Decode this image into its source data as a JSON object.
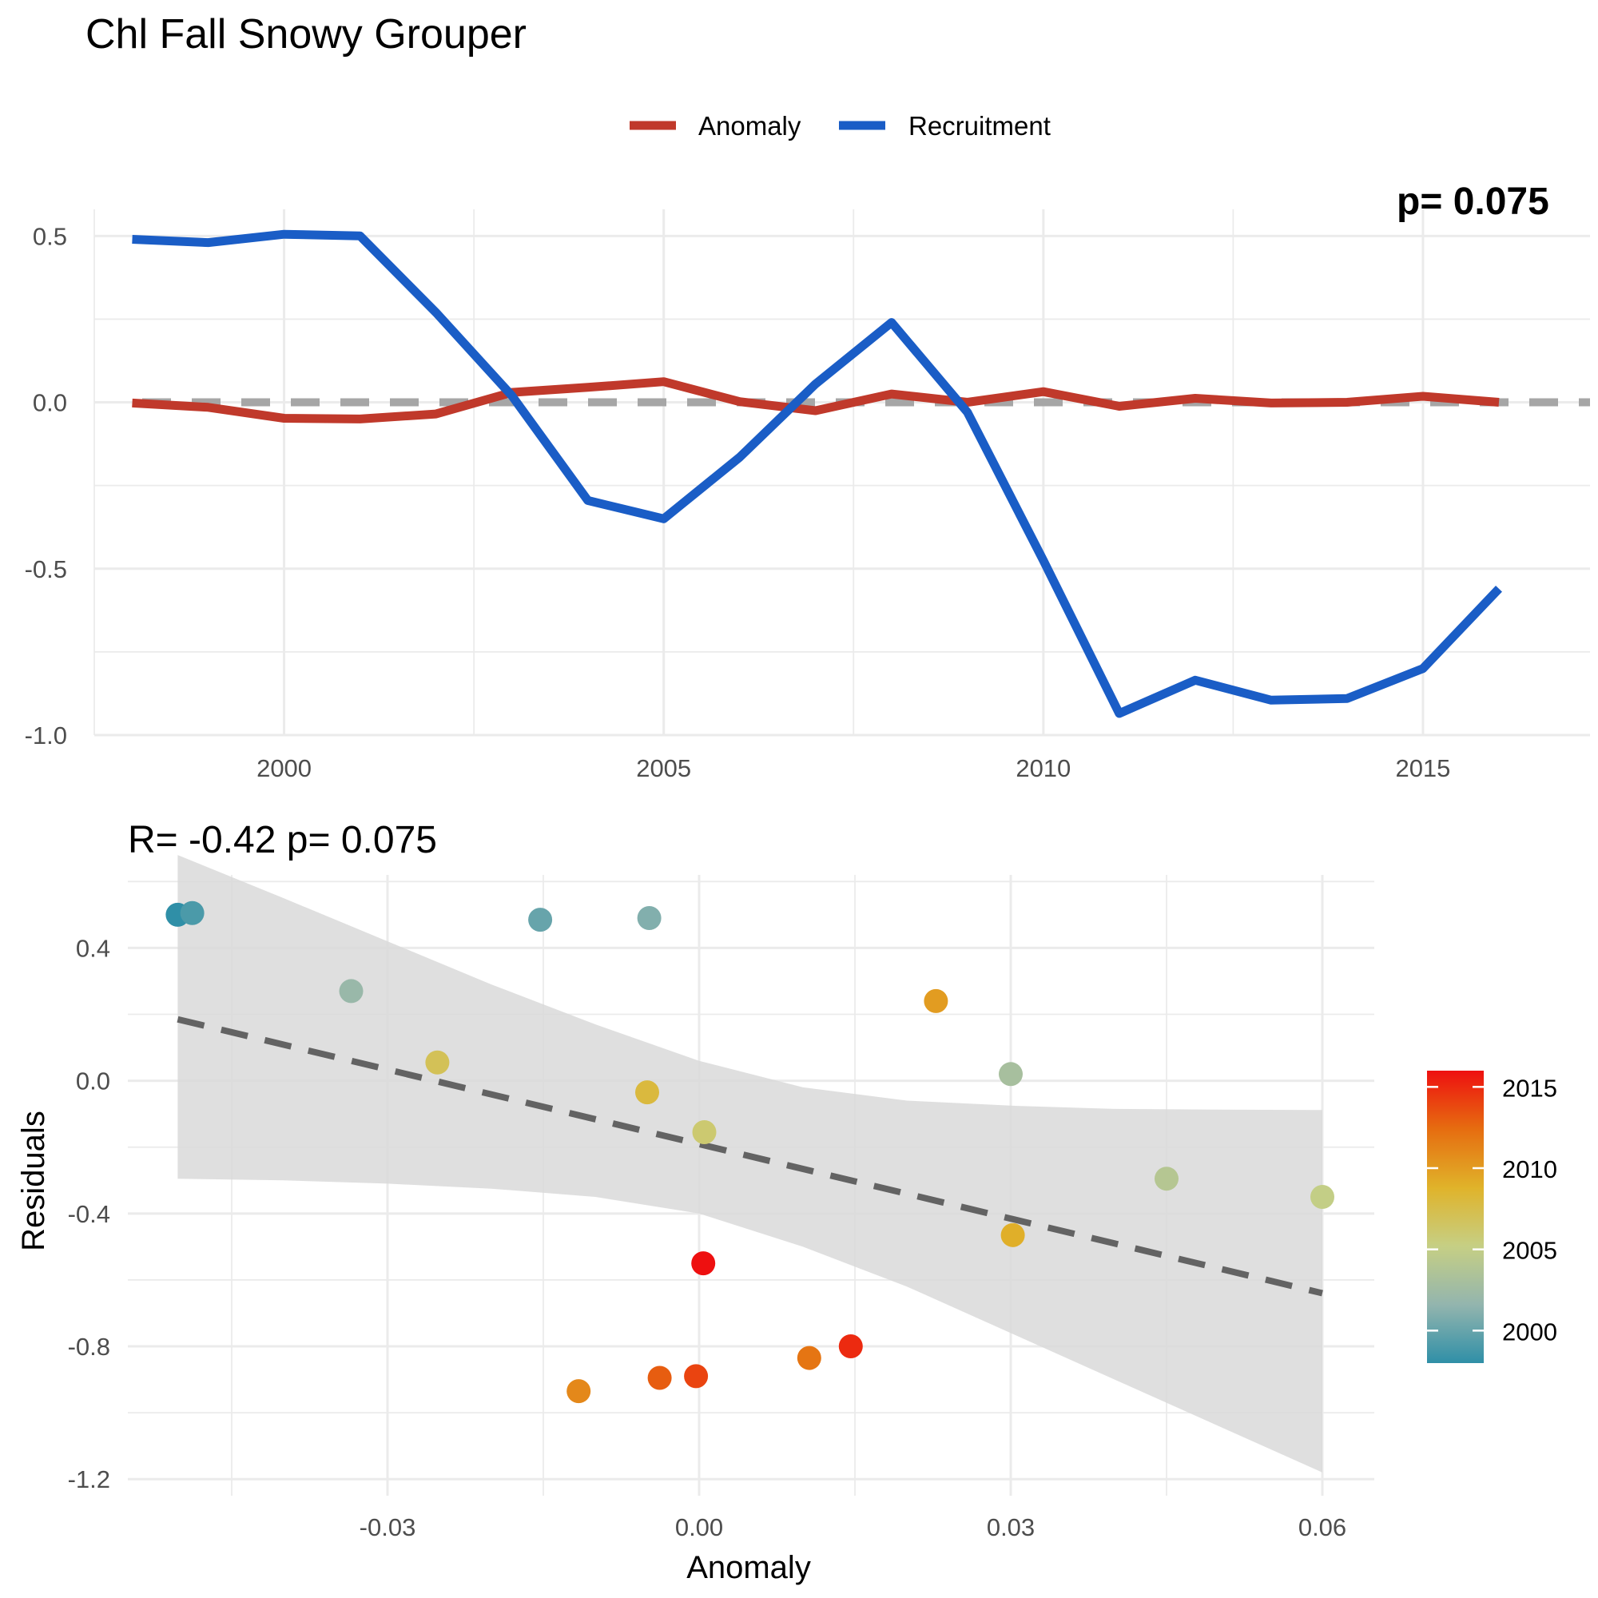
{
  "chart_data": [
    {
      "type": "line",
      "title": "Chl Fall Snowy Grouper",
      "corner_text": "p= 0.075",
      "legend": [
        "Anomaly",
        "Recruitment"
      ],
      "legend_position": "top",
      "x_ticks": [
        "2000",
        "2005",
        "2010",
        "2015"
      ],
      "y_ticks": [
        "0.5",
        "0.0",
        "-0.5",
        "-1.0"
      ],
      "xlim": [
        1997.5,
        2017.2
      ],
      "ylim": [
        -1.0,
        0.58
      ],
      "reference_line": 0,
      "x": [
        1998,
        1999,
        2000,
        2001,
        2002,
        2003,
        2004,
        2005,
        2006,
        2007,
        2008,
        2009,
        2010,
        2011,
        2012,
        2013,
        2014,
        2015,
        2016
      ],
      "series": [
        {
          "name": "Anomaly",
          "color": "#c0392b",
          "values": [
            -0.002,
            -0.015,
            -0.048,
            -0.05,
            -0.035,
            0.03,
            0.045,
            0.062,
            0.002,
            -0.025,
            0.025,
            0.0,
            0.032,
            -0.012,
            0.012,
            -0.002,
            0.0,
            0.018,
            0.0
          ]
        },
        {
          "name": "Recruitment",
          "color": "#1a5dc6",
          "values": [
            0.49,
            0.48,
            0.505,
            0.5,
            0.27,
            0.02,
            -0.295,
            -0.35,
            -0.165,
            0.055,
            0.24,
            -0.03,
            -0.475,
            -0.935,
            -0.835,
            -0.895,
            -0.89,
            -0.8,
            -0.56
          ]
        }
      ]
    },
    {
      "type": "scatter",
      "title": "R= -0.42  p= 0.075",
      "xlabel": "Anomaly",
      "ylabel": "Residuals",
      "x_ticks": [
        "-0.03",
        "0.00",
        "0.03",
        "0.06"
      ],
      "y_ticks": [
        "0.4",
        "0.0",
        "-0.4",
        "-0.8",
        "-1.2"
      ],
      "xlim": [
        -0.055,
        0.065
      ],
      "ylim": [
        -1.25,
        0.62
      ],
      "color_scale": {
        "label_ticks": [
          "2015",
          "2010",
          "2005",
          "2000"
        ],
        "range": [
          1998,
          2016
        ],
        "stops": [
          "#2f8fa7",
          "#93b5ae",
          "#c6cf84",
          "#e0b32a",
          "#e66d10",
          "#ee1010"
        ]
      },
      "points": [
        {
          "year": 1998,
          "x": -0.0502,
          "y": 0.5
        },
        {
          "year": 1999,
          "x": -0.0488,
          "y": 0.505
        },
        {
          "year": 2000,
          "x": -0.0153,
          "y": 0.485
        },
        {
          "year": 2001,
          "x": -0.0048,
          "y": 0.49
        },
        {
          "year": 2002,
          "x": -0.0335,
          "y": 0.27
        },
        {
          "year": 2003,
          "x": 0.03,
          "y": 0.02
        },
        {
          "year": 2004,
          "x": 0.045,
          "y": -0.295
        },
        {
          "year": 2005,
          "x": 0.06,
          "y": -0.35
        },
        {
          "year": 2006,
          "x": 0.0005,
          "y": -0.155
        },
        {
          "year": 2007,
          "x": -0.0252,
          "y": 0.055
        },
        {
          "year": 2008,
          "x": -0.005,
          "y": -0.035
        },
        {
          "year": 2009,
          "x": 0.0302,
          "y": -0.465
        },
        {
          "year": 2010,
          "x": 0.0228,
          "y": 0.24
        },
        {
          "year": 2011,
          "x": -0.0116,
          "y": -0.935
        },
        {
          "year": 2012,
          "x": 0.0106,
          "y": -0.835
        },
        {
          "year": 2013,
          "x": -0.0038,
          "y": -0.895
        },
        {
          "year": 2014,
          "x": -0.0003,
          "y": -0.89
        },
        {
          "year": 2015,
          "x": 0.0146,
          "y": -0.8
        },
        {
          "year": 2016,
          "x": 0.0004,
          "y": -0.55
        }
      ],
      "fit_line": {
        "x": [
          -0.0502,
          0.06
        ],
        "y": [
          0.185,
          -0.64
        ],
        "color": "#636363"
      },
      "confidence_band": {
        "x": [
          -0.0502,
          -0.04,
          -0.03,
          -0.02,
          -0.01,
          0.0,
          0.01,
          0.02,
          0.03,
          0.04,
          0.05,
          0.06
        ],
        "upper": [
          0.68,
          0.55,
          0.42,
          0.29,
          0.17,
          0.06,
          -0.02,
          -0.06,
          -0.075,
          -0.085,
          -0.087,
          -0.088
        ],
        "lower": [
          -0.295,
          -0.3,
          -0.31,
          -0.325,
          -0.35,
          -0.4,
          -0.5,
          -0.62,
          -0.76,
          -0.9,
          -1.04,
          -1.18
        ]
      }
    }
  ]
}
